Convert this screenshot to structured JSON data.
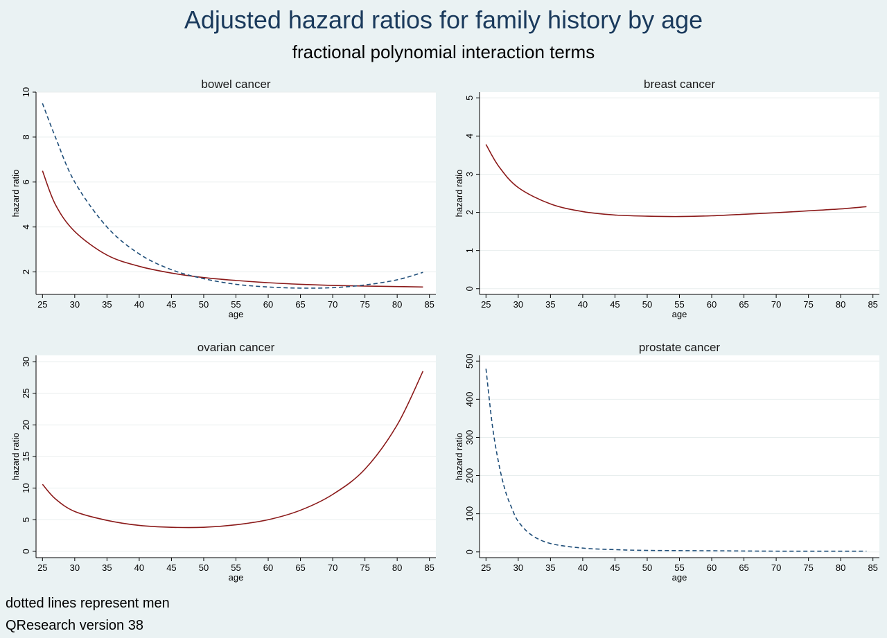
{
  "title": "Adjusted hazard ratios for family history by age",
  "subtitle": "fractional polynomial interaction terms",
  "notes": [
    "dotted lines represent men",
    "QResearch version 38"
  ],
  "colors": {
    "women": "#8b1a1a",
    "men": "#1f4e79",
    "plot_bg": "#ffffff",
    "page_bg": "#eaf2f3"
  },
  "chart_data": [
    {
      "type": "line",
      "title": "bowel cancer",
      "xlabel": "age",
      "ylabel": "hazard ratio",
      "xlim": [
        24,
        86
      ],
      "ylim": [
        1,
        10
      ],
      "xticks": [
        25,
        30,
        35,
        40,
        45,
        50,
        55,
        60,
        65,
        70,
        75,
        80,
        85
      ],
      "yticks": [
        2,
        4,
        6,
        8,
        10
      ],
      "series": [
        {
          "style": "solid",
          "color": "#8b1a1a",
          "x": [
            25,
            27,
            30,
            35,
            40,
            45,
            50,
            55,
            60,
            65,
            70,
            75,
            80,
            84
          ],
          "y": [
            6.5,
            5.0,
            3.8,
            2.75,
            2.25,
            1.95,
            1.75,
            1.62,
            1.52,
            1.45,
            1.4,
            1.37,
            1.35,
            1.33
          ]
        },
        {
          "style": "dashed",
          "color": "#1f4e79",
          "x": [
            25,
            27,
            30,
            35,
            40,
            45,
            50,
            55,
            60,
            65,
            70,
            75,
            80,
            84
          ],
          "y": [
            9.5,
            8.0,
            6.0,
            4.0,
            2.8,
            2.1,
            1.7,
            1.45,
            1.33,
            1.28,
            1.3,
            1.42,
            1.65,
            1.98
          ]
        }
      ]
    },
    {
      "type": "line",
      "title": "breast cancer",
      "xlabel": "age",
      "ylabel": "hazard ratio",
      "xlim": [
        24,
        86
      ],
      "ylim": [
        -0.15,
        5.15
      ],
      "xticks": [
        25,
        30,
        35,
        40,
        45,
        50,
        55,
        60,
        65,
        70,
        75,
        80,
        85
      ],
      "yticks": [
        0,
        1,
        2,
        3,
        4,
        5
      ],
      "series": [
        {
          "style": "solid",
          "color": "#8b1a1a",
          "x": [
            25,
            27,
            30,
            35,
            40,
            45,
            50,
            55,
            60,
            65,
            70,
            75,
            80,
            84
          ],
          "y": [
            3.78,
            3.2,
            2.65,
            2.22,
            2.02,
            1.93,
            1.9,
            1.89,
            1.91,
            1.95,
            1.99,
            2.04,
            2.09,
            2.15
          ]
        }
      ]
    },
    {
      "type": "line",
      "title": "ovarian cancer",
      "xlabel": "age",
      "ylabel": "hazard ratio",
      "xlim": [
        24,
        86
      ],
      "ylim": [
        -1,
        31
      ],
      "xticks": [
        25,
        30,
        35,
        40,
        45,
        50,
        55,
        60,
        65,
        70,
        75,
        80,
        85
      ],
      "yticks": [
        0,
        5,
        10,
        15,
        20,
        25,
        30
      ],
      "series": [
        {
          "style": "solid",
          "color": "#8b1a1a",
          "x": [
            25,
            27,
            30,
            35,
            40,
            45,
            50,
            55,
            60,
            65,
            70,
            75,
            80,
            84
          ],
          "y": [
            10.6,
            8.3,
            6.3,
            4.9,
            4.1,
            3.8,
            3.8,
            4.2,
            5.0,
            6.5,
            9.0,
            13.0,
            20.0,
            28.5
          ]
        }
      ]
    },
    {
      "type": "line",
      "title": "prostate cancer",
      "xlabel": "age",
      "ylabel": "hazard ratio",
      "xlim": [
        24,
        86
      ],
      "ylim": [
        -15,
        515
      ],
      "xticks": [
        25,
        30,
        35,
        40,
        45,
        50,
        55,
        60,
        65,
        70,
        75,
        80,
        85
      ],
      "yticks": [
        0,
        100,
        200,
        300,
        400,
        500
      ],
      "series": [
        {
          "style": "dashed",
          "color": "#1f4e79",
          "x": [
            25,
            26,
            27,
            28,
            29,
            30,
            32,
            35,
            40,
            45,
            50,
            60,
            70,
            84
          ],
          "y": [
            480,
            330,
            230,
            160,
            115,
            80,
            45,
            22,
            10,
            6,
            4,
            3,
            2,
            2
          ]
        }
      ]
    }
  ]
}
